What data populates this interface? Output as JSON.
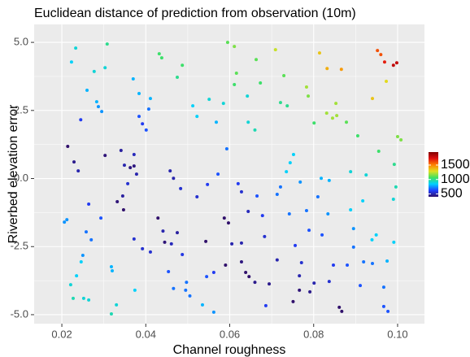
{
  "chart_data": {
    "type": "scatter",
    "title": "Euclidean distance of prediction from observation (10m)",
    "x_label": "Channel roughness",
    "y_label": "Riverbed elevation error",
    "xlim": [
      0.0134,
      0.1064
    ],
    "ylim": [
      -5.33,
      5.66
    ],
    "xticks": [
      0.02,
      0.04,
      0.06,
      0.08,
      {
        "value": 0.1,
        "label": "0.10"
      }
    ],
    "yticks": [
      {
        "value": -5,
        "label": "-5.0"
      },
      -2.5,
      {
        "value": 0,
        "label": "0.0"
      },
      2.5,
      {
        "value": 5,
        "label": "5.0"
      }
    ],
    "grid": true,
    "colorscale": [
      "#30106b",
      "#2040ff",
      "#00d0ff",
      "#40e060",
      "#e0e020",
      "#ff8000",
      "#e01010",
      "#800000"
    ],
    "clim": [
      400,
      1950
    ],
    "cticks": [
      500,
      1000,
      1500
    ],
    "x": [
      0.0233,
      0.0223,
      0.0308,
      0.0277,
      0.0303,
      0.026,
      0.0283,
      0.0287,
      0.0295,
      0.0245,
      0.0214,
      0.0229,
      0.0239,
      0.0303,
      0.0341,
      0.0349,
      0.0363,
      0.0372,
      0.0372,
      0.0378,
      0.0357,
      0.0264,
      0.0293,
      0.0206,
      0.0212,
      0.0258,
      0.027,
      0.025,
      0.0332,
      0.0345,
      0.0347,
      0.0372,
      0.0392,
      0.0318,
      0.032,
      0.0235,
      0.0221,
      0.0246,
      0.0227,
      0.0252,
      0.0264,
      0.033,
      0.0318,
      0.0374,
      0.0384,
      0.037,
      0.0384,
      0.0392,
      0.0401,
      0.0407,
      0.0411,
      0.0432,
      0.0438,
      0.0475,
      0.0487,
      0.0512,
      0.0522,
      0.0551,
      0.0568,
      0.0458,
      0.0466,
      0.0483,
      0.0522,
      0.0547,
      0.0572,
      0.0429,
      0.0445,
      0.0441,
      0.0475,
      0.0461,
      0.0411,
      0.0454,
      0.0487,
      0.0497,
      0.0495,
      0.0505,
      0.0466,
      0.0543,
      0.0545,
      0.0562,
      0.0535,
      0.0562,
      0.0595,
      0.0611,
      0.0616,
      0.0611,
      0.0585,
      0.0593,
      0.0587,
      0.0597,
      0.059,
      0.0605,
      0.0628,
      0.0628,
      0.062,
      0.0644,
      0.0628,
      0.0638,
      0.0646,
      0.066,
      0.0694,
      0.0686,
      0.0713,
      0.0683,
      0.0665,
      0.0678,
      0.0713,
      0.0721,
      0.0742,
      0.0735,
      0.0744,
      0.0752,
      0.0663,
      0.0673,
      0.0644,
      0.066,
      0.0642,
      0.0709,
      0.0729,
      0.0721,
      0.0737,
      0.0783,
      0.0787,
      0.0801,
      0.0814,
      0.0832,
      0.0866,
      0.0831,
      0.0845,
      0.0855,
      0.0853,
      0.0878,
      0.0905,
      0.0952,
      0.096,
      0.0969,
      0.099,
      0.0998,
      0.094,
      0.0973,
      0.0955,
      0.1,
      0.1008,
      0.0992,
      0.0996,
      0.099,
      0.0925,
      0.0888,
      0.0917,
      0.0818,
      0.0837,
      0.0768,
      0.081,
      0.0783,
      0.0834,
      0.0888,
      0.0895,
      0.0949,
      0.0939,
      0.0895,
      0.0789,
      0.082,
      0.0756,
      0.0771,
      0.0847,
      0.088,
      0.0919,
      0.094,
      0.0975,
      0.0991,
      0.0911,
      0.0967,
      0.0766,
      0.0766,
      0.0801,
      0.0837,
      0.0751,
      0.0791,
      0.0861,
      0.0867,
      0.0967,
      0.0977
    ],
    "y": [
      4.79,
      4.28,
      4.94,
      3.93,
      4.07,
      3.24,
      2.82,
      2.64,
      2.46,
      2.16,
      1.18,
      0.61,
      0.28,
      0.85,
      1.03,
      0.49,
      0.4,
      0.46,
      0.88,
      0.16,
      -0.19,
      -0.94,
      -1.45,
      -1.6,
      -1.51,
      -1.96,
      -2.25,
      -2.82,
      -0.85,
      -0.64,
      -1.15,
      -2.22,
      -2.58,
      -3.24,
      -3.39,
      -3.57,
      -3.9,
      -3.06,
      -4.4,
      -4.4,
      -4.46,
      -4.64,
      -4.97,
      -4.1,
      3.12,
      3.66,
      2.28,
      2.01,
      1.78,
      2.55,
      2.94,
      4.58,
      4.43,
      3.72,
      4.16,
      2.67,
      2.28,
      2.91,
      2.07,
      0.28,
      0.01,
      -0.37,
      -0.67,
      -0.22,
      0.16,
      -1.45,
      -2.34,
      -1.93,
      -1.99,
      -2.4,
      -2.7,
      -3.42,
      -2.79,
      -3.81,
      -4.1,
      -4.31,
      -4.04,
      -2.31,
      -3.6,
      -3.45,
      -4.64,
      -4.91,
      5.0,
      4.85,
      3.87,
      3.45,
      2.76,
      1.09,
      -1.45,
      -1.63,
      -3.18,
      -2.4,
      -2.37,
      -0.49,
      -0.19,
      -1.21,
      -3.06,
      -3.45,
      -3.6,
      -3.81,
      -3.87,
      -4.67,
      -2.99,
      -2.13,
      -0.64,
      -1.36,
      -0.58,
      -0.31,
      -1.3,
      0.25,
      0.58,
      0.88,
      4.37,
      3.51,
      2.07,
      1.78,
      3.03,
      4.73,
      3.78,
      2.79,
      2.67,
      3.36,
      3.03,
      2.04,
      4.61,
      4.04,
      4.01,
      2.4,
      2.22,
      2.31,
      2.76,
      2.07,
      1.57,
      4.7,
      4.55,
      4.28,
      4.16,
      4.25,
      2.94,
      3.57,
      1.0,
      1.54,
      1.42,
      0.52,
      -0.31,
      -0.76,
      0.13,
      0.25,
      -0.82,
      0.01,
      -0.07,
      -0.13,
      -0.67,
      -1.18,
      -1.3,
      -1.15,
      -1.84,
      -2.07,
      -2.25,
      -2.52,
      -1.9,
      -2.07,
      -2.46,
      -3.09,
      -3.18,
      -3.18,
      -3.06,
      -3.12,
      -3.03,
      -2.34,
      -3.93,
      -3.99,
      -3.57,
      -4.1,
      -3.84,
      -3.78,
      -4.52,
      -4.16,
      -4.73,
      -4.88,
      -4.7,
      -4.88
    ],
    "color_values": [
      900,
      850,
      1000,
      900,
      900,
      800,
      800,
      750,
      750,
      600,
      400,
      450,
      500,
      420,
      480,
      500,
      430,
      430,
      520,
      500,
      550,
      600,
      650,
      750,
      750,
      700,
      700,
      750,
      420,
      480,
      400,
      550,
      550,
      800,
      800,
      850,
      900,
      850,
      950,
      900,
      900,
      900,
      950,
      850,
      800,
      800,
      650,
      600,
      650,
      700,
      800,
      1050,
      1050,
      1000,
      1050,
      850,
      850,
      900,
      800,
      500,
      500,
      550,
      550,
      600,
      650,
      400,
      420,
      500,
      480,
      520,
      550,
      650,
      580,
      700,
      700,
      700,
      700,
      400,
      650,
      600,
      800,
      750,
      1100,
      1150,
      1100,
      1050,
      900,
      700,
      400,
      400,
      380,
      500,
      500,
      550,
      600,
      520,
      430,
      400,
      400,
      450,
      450,
      600,
      500,
      550,
      650,
      600,
      700,
      700,
      700,
      850,
      850,
      850,
      1100,
      1050,
      900,
      950,
      900,
      1250,
      1100,
      1000,
      1000,
      1200,
      1150,
      1050,
      1350,
      1400,
      1450,
      1200,
      1200,
      1200,
      1200,
      1100,
      1050,
      1600,
      1600,
      1700,
      1800,
      1800,
      1350,
      1300,
      1050,
      1150,
      1150,
      1000,
      950,
      900,
      900,
      900,
      850,
      800,
      800,
      750,
      700,
      700,
      750,
      850,
      750,
      850,
      850,
      700,
      650,
      650,
      600,
      550,
      600,
      650,
      700,
      700,
      800,
      850,
      650,
      700,
      500,
      420,
      500,
      550,
      400,
      450,
      400,
      400,
      650,
      650
    ]
  }
}
